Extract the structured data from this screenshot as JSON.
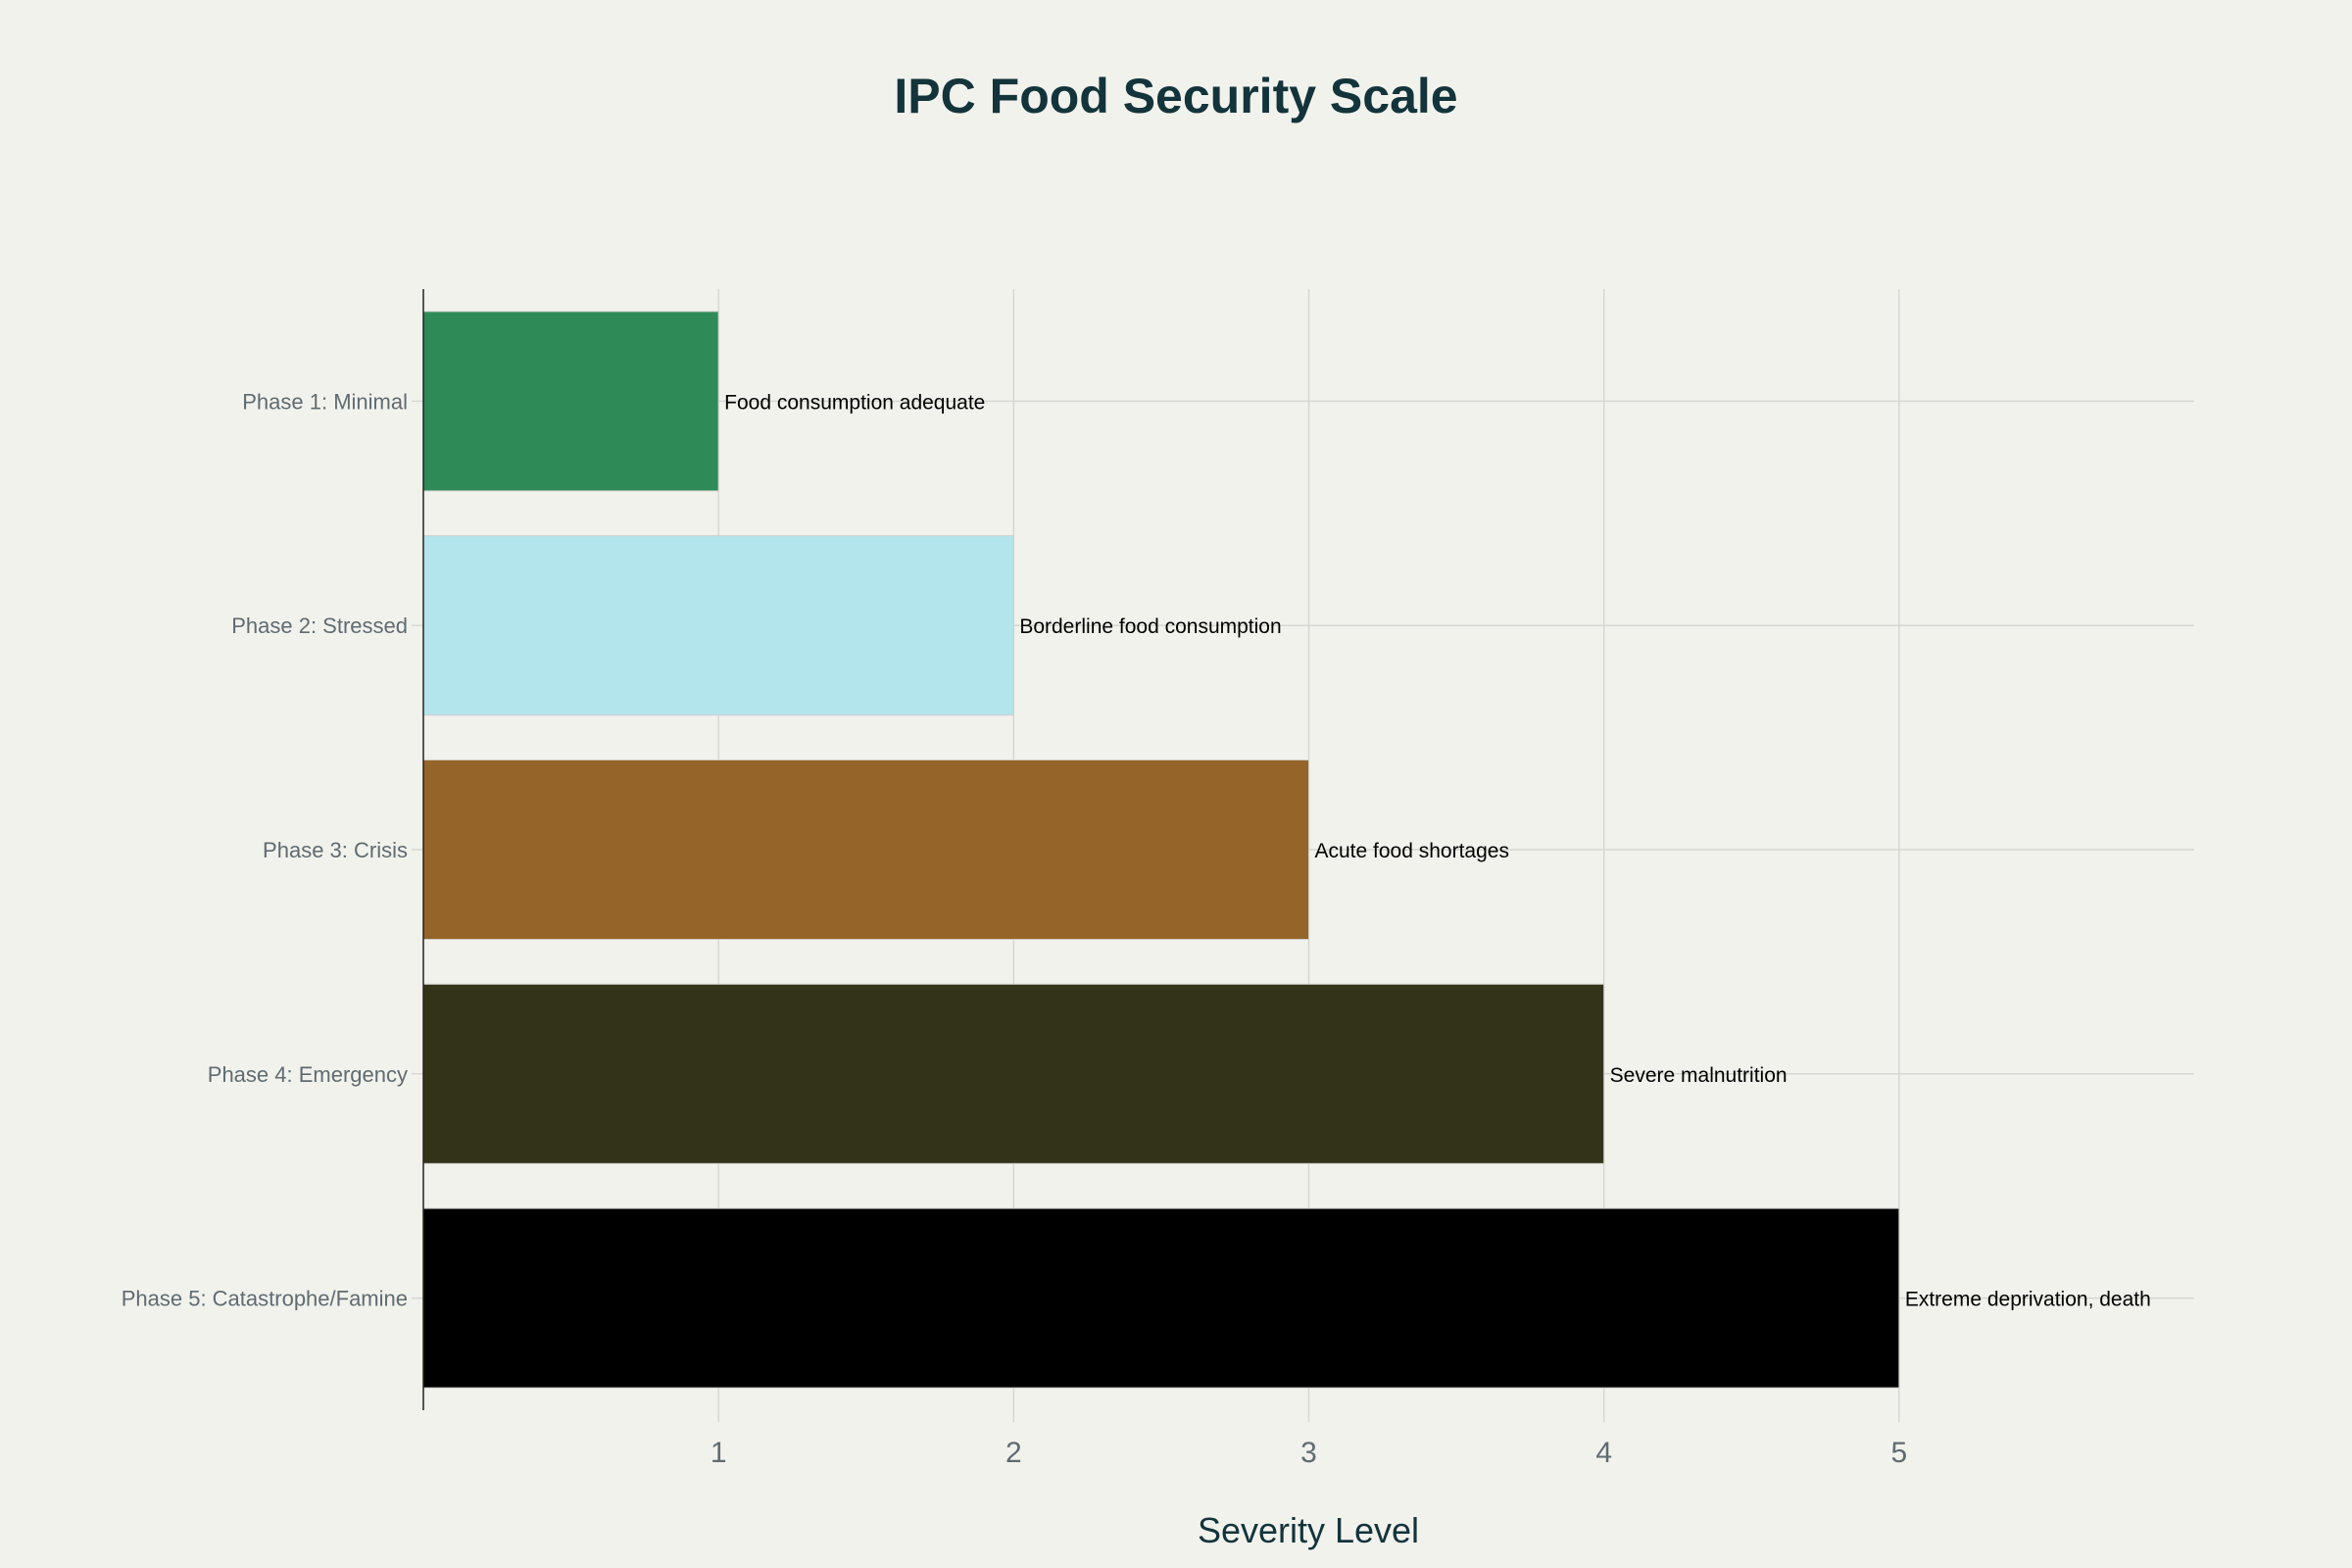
{
  "chart_data": {
    "type": "bar",
    "orientation": "horizontal",
    "title": "IPC Food Security Scale",
    "xlabel": "Severity Level",
    "ylabel": "",
    "xlim": [
      0,
      6
    ],
    "xticks": [
      1,
      2,
      3,
      4,
      5
    ],
    "grid": true,
    "categories": [
      "Phase 1: Minimal",
      "Phase 2: Stressed",
      "Phase 3: Crisis",
      "Phase 4: Emergency",
      "Phase 5: Catastrophe/Famine"
    ],
    "values": [
      1,
      2,
      3,
      4,
      5
    ],
    "data_labels": [
      "Food consumption adequate",
      "Borderline food consumption",
      "Acute food shortages",
      "Severe malnutrition",
      "Extreme deprivation, death"
    ],
    "colors": [
      "#2e8b57",
      "#b3e5ec",
      "#956428",
      "#333319",
      "#000000"
    ]
  }
}
